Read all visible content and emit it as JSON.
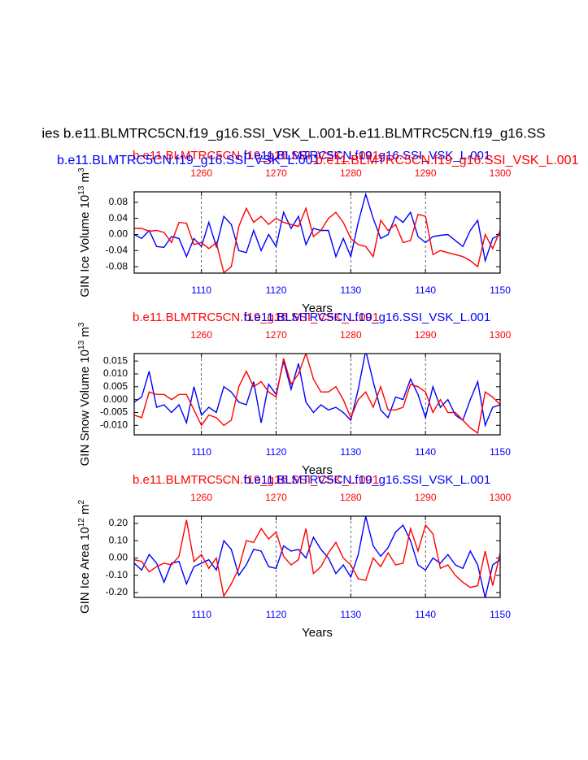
{
  "chart_data": [
    {
      "type": "line",
      "title": "ies b.e11.BLMTRC5CN.f19_g16.SSI_VSK_L.001-b.e11.BLMTRC5CN.f19_g16.SS",
      "subtitles": [
        "b.e11.BLMTRC5CN.f19_g16.SSI_VSK_L.001",
        "b.e11.BLMTRC5CN.f19_g16.SSI_VSK_L.001"
      ],
      "left_label": "b.e11.BLMTRC5CN.f19_g16.SSI_VSK_L.001",
      "right_label": "b.e11.BLMTRC5CN.f19_g16.SSI_VSK_L.001",
      "ylabel": {
        "text": "GIN Ice Volume 10",
        "exp": "13",
        "unit": " m",
        "unit_exp": "3"
      },
      "xlabel": "Years",
      "x": [
        1101,
        1102,
        1103,
        1104,
        1105,
        1106,
        1107,
        1108,
        1109,
        1110,
        1111,
        1112,
        1113,
        1114,
        1115,
        1116,
        1117,
        1118,
        1119,
        1120,
        1121,
        1122,
        1123,
        1124,
        1125,
        1126,
        1127,
        1128,
        1129,
        1130,
        1131,
        1132,
        1133,
        1134,
        1135,
        1136,
        1137,
        1138,
        1139,
        1140,
        1141,
        1142,
        1143,
        1144,
        1145,
        1146,
        1147,
        1148,
        1149,
        1150
      ],
      "x2": [
        1251,
        1252,
        1253,
        1254,
        1255,
        1256,
        1257,
        1258,
        1259,
        1260,
        1261,
        1262,
        1263,
        1264,
        1265,
        1266,
        1267,
        1268,
        1269,
        1270,
        1271,
        1272,
        1273,
        1274,
        1275,
        1276,
        1277,
        1278,
        1279,
        1280,
        1281,
        1282,
        1283,
        1284,
        1285,
        1286,
        1287,
        1288,
        1289,
        1290,
        1291,
        1292,
        1293,
        1294,
        1295,
        1296,
        1297,
        1298,
        1299,
        1300
      ],
      "xlim": [
        1101,
        1150
      ],
      "x2lim": [
        1251,
        1300
      ],
      "xticks": [
        1110,
        1120,
        1130,
        1140,
        1150
      ],
      "x2ticks": [
        1260,
        1270,
        1280,
        1290,
        1300
      ],
      "ylim": [
        -0.096,
        0.106
      ],
      "yticks": [
        {
          "value": -0.08,
          "label": "-0.08"
        },
        {
          "value": -0.04,
          "label": "-0.04"
        },
        {
          "value": 0,
          "label": "0.00"
        },
        {
          "value": 0.04,
          "label": "0.04"
        },
        {
          "value": 0.08,
          "label": "0.08"
        }
      ],
      "grid": true,
      "series": [
        {
          "color": "#0000ff",
          "values": [
            0.0,
            -0.01,
            0.01,
            -0.03,
            -0.032,
            -0.005,
            -0.01,
            -0.055,
            -0.01,
            -0.03,
            0.03,
            -0.03,
            0.045,
            0.025,
            -0.04,
            -0.045,
            0.01,
            -0.04,
            0.0,
            -0.03,
            0.055,
            0.015,
            0.045,
            -0.025,
            0.015,
            0.01,
            0.01,
            -0.055,
            -0.01,
            -0.055,
            0.03,
            0.1,
            0.04,
            -0.01,
            0.0,
            0.045,
            0.03,
            0.055,
            -0.005,
            -0.02,
            -0.005,
            -0.002,
            0.0,
            -0.015,
            -0.03,
            0.01,
            0.035,
            -0.065,
            -0.01,
            0.0
          ]
        },
        {
          "color": "#ff0000",
          "axis": "x2",
          "values": [
            0.015,
            0.015,
            0.008,
            0.01,
            0.005,
            -0.02,
            0.03,
            0.028,
            -0.025,
            -0.02,
            -0.035,
            -0.02,
            -0.095,
            -0.08,
            0.02,
            0.065,
            0.03,
            0.045,
            0.025,
            0.04,
            0.03,
            0.025,
            0.02,
            0.065,
            -0.005,
            0.01,
            0.04,
            0.055,
            0.03,
            -0.01,
            -0.025,
            -0.03,
            -0.055,
            0.035,
            0.01,
            0.025,
            -0.02,
            -0.015,
            0.05,
            0.045,
            -0.05,
            -0.04,
            -0.045,
            -0.05,
            -0.055,
            -0.065,
            -0.08,
            0.0,
            -0.035,
            0.01
          ]
        }
      ]
    },
    {
      "type": "line",
      "left_label": "b.e11.BLMTRC5CN.f19_g16.SSI_VSK_L.001",
      "right_label": "b.e11.BLMTRC5CN.f19_g16.SSI_VSK_L.001",
      "ylabel": {
        "text": "GIN Snow Volume 10",
        "exp": "13",
        "unit": " m",
        "unit_exp": "3"
      },
      "xlabel": "Years",
      "x": [
        1101,
        1102,
        1103,
        1104,
        1105,
        1106,
        1107,
        1108,
        1109,
        1110,
        1111,
        1112,
        1113,
        1114,
        1115,
        1116,
        1117,
        1118,
        1119,
        1120,
        1121,
        1122,
        1123,
        1124,
        1125,
        1126,
        1127,
        1128,
        1129,
        1130,
        1131,
        1132,
        1133,
        1134,
        1135,
        1136,
        1137,
        1138,
        1139,
        1140,
        1141,
        1142,
        1143,
        1144,
        1145,
        1146,
        1147,
        1148,
        1149,
        1150
      ],
      "x2": [
        1251,
        1252,
        1253,
        1254,
        1255,
        1256,
        1257,
        1258,
        1259,
        1260,
        1261,
        1262,
        1263,
        1264,
        1265,
        1266,
        1267,
        1268,
        1269,
        1270,
        1271,
        1272,
        1273,
        1274,
        1275,
        1276,
        1277,
        1278,
        1279,
        1280,
        1281,
        1282,
        1283,
        1284,
        1285,
        1286,
        1287,
        1288,
        1289,
        1290,
        1291,
        1292,
        1293,
        1294,
        1295,
        1296,
        1297,
        1298,
        1299,
        1300
      ],
      "xlim": [
        1101,
        1150
      ],
      "x2lim": [
        1251,
        1300
      ],
      "xticks": [
        1110,
        1120,
        1130,
        1140,
        1150
      ],
      "x2ticks": [
        1260,
        1270,
        1280,
        1290,
        1300
      ],
      "ylim": [
        -0.0137,
        0.0179
      ],
      "yticks": [
        {
          "value": -0.01,
          "label": "-0.010"
        },
        {
          "value": -0.005,
          "label": "-0.005"
        },
        {
          "value": 0,
          "label": "0.000"
        },
        {
          "value": 0.005,
          "label": "0.005"
        },
        {
          "value": 0.01,
          "label": "0.010"
        },
        {
          "value": 0.015,
          "label": "0.015"
        }
      ],
      "grid": true,
      "series": [
        {
          "color": "#0000ff",
          "values": [
            -0.001,
            0.001,
            0.011,
            -0.003,
            -0.002,
            -0.005,
            -0.002,
            -0.009,
            0.005,
            -0.006,
            -0.003,
            -0.005,
            0.005,
            0.003,
            -0.001,
            -0.002,
            0.007,
            -0.009,
            0.006,
            0.002,
            0.015,
            0.004,
            0.014,
            -0.001,
            -0.005,
            -0.002,
            -0.004,
            -0.003,
            -0.005,
            -0.008,
            0.004,
            0.019,
            0.007,
            -0.004,
            -0.007,
            0.001,
            0.0,
            0.008,
            0.002,
            -0.007,
            0.005,
            -0.003,
            0.0,
            -0.006,
            -0.008,
            0.0,
            0.007,
            -0.01,
            -0.003,
            -0.002
          ]
        },
        {
          "color": "#ff0000",
          "axis": "x2",
          "values": [
            -0.006,
            -0.007,
            0.003,
            0.002,
            0.002,
            0.0,
            0.002,
            0.002,
            -0.004,
            -0.01,
            -0.006,
            -0.007,
            -0.01,
            -0.008,
            0.005,
            0.011,
            0.005,
            0.007,
            0.003,
            0.001,
            0.016,
            0.006,
            0.01,
            0.018,
            0.008,
            0.003,
            0.003,
            0.005,
            0.0,
            -0.007,
            0.0,
            0.003,
            -0.003,
            0.005,
            -0.004,
            -0.004,
            -0.003,
            0.006,
            0.005,
            0.003,
            -0.005,
            0.0,
            -0.005,
            -0.005,
            -0.008,
            -0.011,
            -0.013,
            0.003,
            0.001,
            -0.002
          ]
        }
      ]
    },
    {
      "type": "line",
      "left_label": "b.e11.BLMTRC5CN.f19_g16.SSI_VSK_L.001",
      "right_label": "b.e11.BLMTRC5CN.f19_g16.SSI_VSK_L.001",
      "ylabel": {
        "text": "GIN Ice Area 10",
        "exp": "12",
        "unit": " m",
        "unit_exp": "2"
      },
      "xlabel": "Years",
      "x": [
        1101,
        1102,
        1103,
        1104,
        1105,
        1106,
        1107,
        1108,
        1109,
        1110,
        1111,
        1112,
        1113,
        1114,
        1115,
        1116,
        1117,
        1118,
        1119,
        1120,
        1121,
        1122,
        1123,
        1124,
        1125,
        1126,
        1127,
        1128,
        1129,
        1130,
        1131,
        1132,
        1133,
        1134,
        1135,
        1136,
        1137,
        1138,
        1139,
        1140,
        1141,
        1142,
        1143,
        1144,
        1145,
        1146,
        1147,
        1148,
        1149,
        1150
      ],
      "x2": [
        1251,
        1252,
        1253,
        1254,
        1255,
        1256,
        1257,
        1258,
        1259,
        1260,
        1261,
        1262,
        1263,
        1264,
        1265,
        1266,
        1267,
        1268,
        1269,
        1270,
        1271,
        1272,
        1273,
        1274,
        1275,
        1276,
        1277,
        1278,
        1279,
        1280,
        1281,
        1282,
        1283,
        1284,
        1285,
        1286,
        1287,
        1288,
        1289,
        1290,
        1291,
        1292,
        1293,
        1294,
        1295,
        1296,
        1297,
        1298,
        1299,
        1300
      ],
      "xlim": [
        1101,
        1150
      ],
      "x2lim": [
        1251,
        1300
      ],
      "xticks": [
        1110,
        1120,
        1130,
        1140,
        1150
      ],
      "x2ticks": [
        1260,
        1270,
        1280,
        1290,
        1300
      ],
      "ylim": [
        -0.228,
        0.242
      ],
      "yticks": [
        {
          "value": -0.2,
          "label": "-0.20"
        },
        {
          "value": -0.1,
          "label": "-0.10"
        },
        {
          "value": 0,
          "label": "0.00"
        },
        {
          "value": 0.1,
          "label": "0.10"
        },
        {
          "value": 0.2,
          "label": "0.20"
        }
      ],
      "grid": true,
      "series": [
        {
          "color": "#0000ff",
          "values": [
            -0.03,
            -0.07,
            0.02,
            -0.03,
            -0.14,
            -0.03,
            -0.02,
            -0.15,
            -0.05,
            -0.03,
            -0.01,
            -0.07,
            0.1,
            0.05,
            -0.1,
            -0.04,
            0.05,
            0.04,
            -0.05,
            -0.06,
            0.07,
            0.04,
            0.05,
            0.0,
            0.12,
            0.05,
            0.0,
            -0.09,
            -0.04,
            -0.11,
            0.02,
            0.24,
            0.07,
            0.01,
            0.06,
            0.15,
            0.19,
            0.1,
            -0.04,
            -0.07,
            0.0,
            -0.03,
            0.02,
            -0.04,
            -0.06,
            0.04,
            -0.04,
            -0.23,
            -0.04,
            -0.01
          ]
        },
        {
          "color": "#ff0000",
          "axis": "x2",
          "values": [
            -0.01,
            -0.02,
            -0.08,
            -0.05,
            -0.03,
            -0.04,
            0.01,
            0.22,
            -0.02,
            0.02,
            -0.06,
            0.0,
            -0.22,
            -0.15,
            -0.06,
            0.1,
            0.09,
            0.17,
            0.11,
            0.15,
            0.01,
            -0.04,
            -0.01,
            0.17,
            -0.09,
            -0.05,
            0.03,
            0.09,
            0.0,
            -0.04,
            -0.12,
            -0.13,
            0.0,
            -0.05,
            0.03,
            -0.04,
            -0.03,
            0.17,
            0.04,
            0.19,
            0.14,
            -0.06,
            -0.04,
            -0.1,
            -0.14,
            -0.17,
            -0.16,
            0.04,
            -0.16,
            0.03
          ]
        }
      ]
    }
  ]
}
